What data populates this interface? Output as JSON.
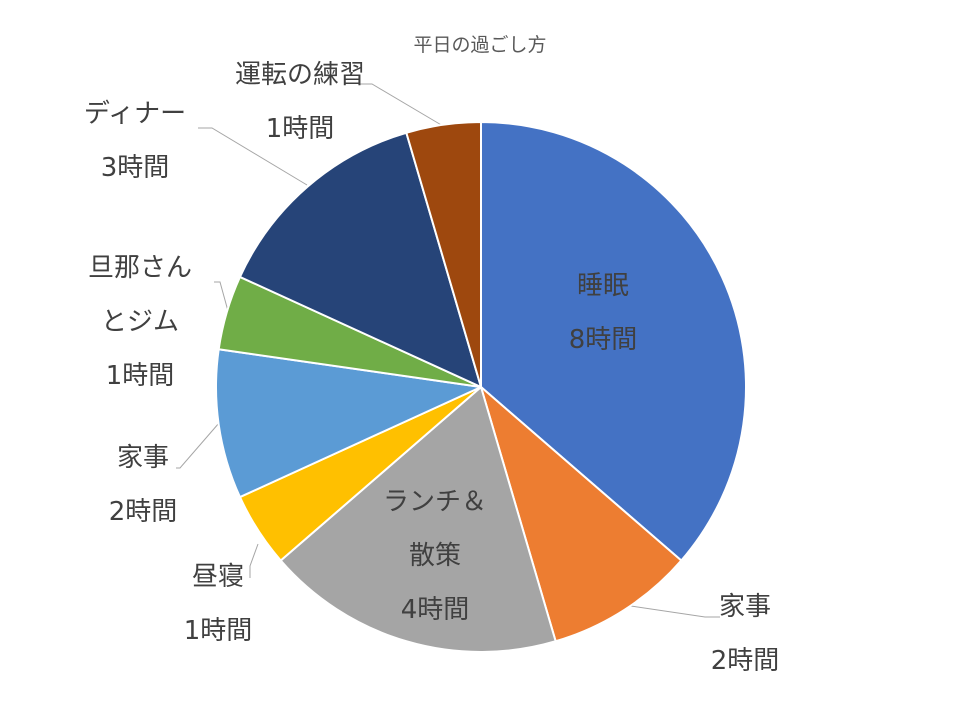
{
  "chart_data": {
    "type": "pie",
    "title": "平日の過ごし方",
    "slices": [
      {
        "name": "睡眠",
        "value_label": "8時間",
        "value": 8,
        "color": "#4472C4"
      },
      {
        "name": "家事",
        "value_label": "2時間",
        "value": 2,
        "color": "#ED7D31"
      },
      {
        "name": "ランチ＆散策",
        "name_lines": [
          "ランチ＆",
          "散策"
        ],
        "value_label": "4時間",
        "value": 4,
        "color": "#A5A5A5"
      },
      {
        "name": "昼寝",
        "value_label": "1時間",
        "value": 1,
        "color": "#FFC000"
      },
      {
        "name": "家事",
        "value_label": "2時間",
        "value": 2,
        "color": "#5B9BD5"
      },
      {
        "name": "旦那さんとジム",
        "name_lines": [
          "旦那さん",
          "とジム"
        ],
        "value_label": "1時間",
        "value": 1,
        "color": "#70AD47"
      },
      {
        "name": "ディナー",
        "value_label": "3時間",
        "value": 3,
        "color": "#264478"
      },
      {
        "name": "運転の練習",
        "value_label": "1時間",
        "value": 1,
        "color": "#9E480E"
      }
    ]
  }
}
